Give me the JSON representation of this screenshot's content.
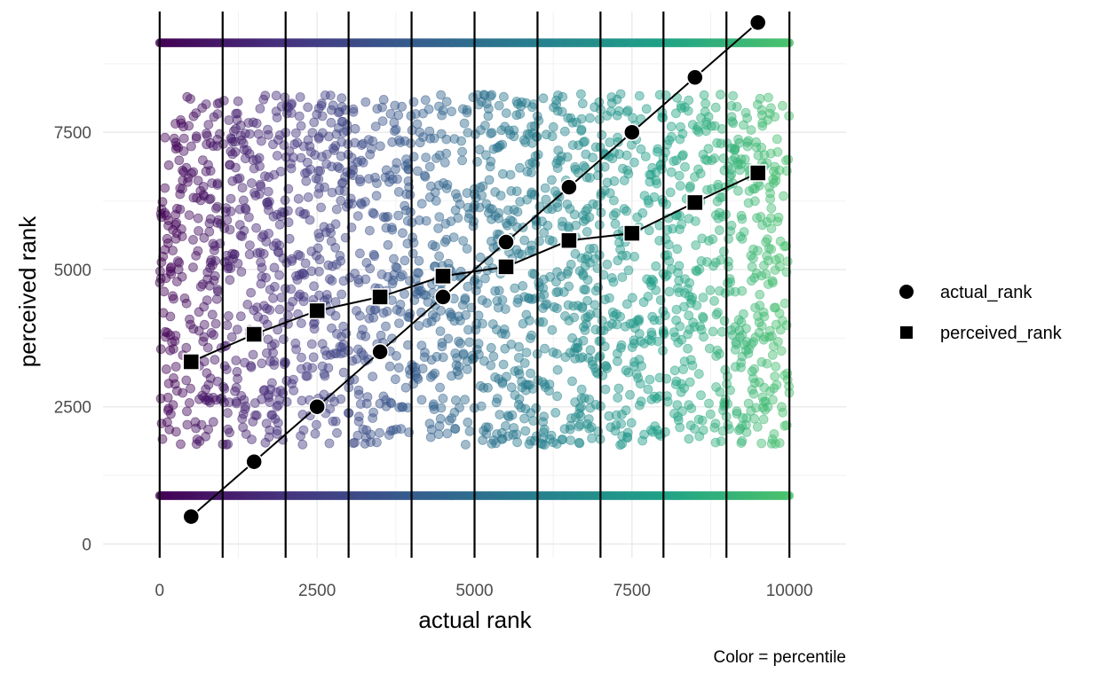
{
  "chart_data": {
    "type": "scatter",
    "xlabel": "actual rank",
    "ylabel": "perceived rank",
    "caption": "Color = percentile",
    "xlim": [
      -900,
      10900
    ],
    "ylim": [
      -250,
      9700
    ],
    "x_ticks": [
      0,
      2500,
      5000,
      7500,
      10000
    ],
    "x_tick_labels": [
      "0",
      "2500",
      "5000",
      "7500",
      "10000"
    ],
    "y_ticks": [
      0,
      2500,
      5000,
      7500
    ],
    "y_tick_labels": [
      "0",
      "2500",
      "5000",
      "7500"
    ],
    "grid": true,
    "vlines": [
      0,
      1000,
      2000,
      3000,
      4000,
      5000,
      6000,
      7000,
      8000,
      9000,
      10000
    ],
    "color_scale": "viridis",
    "color_range": [
      "#440154",
      "#46337e",
      "#365c8d",
      "#277f8e",
      "#1fa187",
      "#4ac16d"
    ],
    "jitter_cloud": {
      "x_range": [
        0,
        10000
      ],
      "y_range": [
        1800,
        8200
      ],
      "point_alpha": 0.45
    },
    "floor_band_y": 880,
    "ceiling_band_y": 9130,
    "categories": [
      "500",
      "1500",
      "2500",
      "3500",
      "4500",
      "5500",
      "6500",
      "7500",
      "8500",
      "9500"
    ],
    "series": [
      {
        "name": "actual_rank",
        "marker": "circle",
        "x": [
          500,
          1500,
          2500,
          3500,
          4500,
          5500,
          6500,
          7500,
          8500,
          9500
        ],
        "values": [
          500,
          1500,
          2500,
          3500,
          4500,
          5500,
          6500,
          7500,
          8500,
          9500
        ]
      },
      {
        "name": "perceived_rank",
        "marker": "square",
        "x": [
          500,
          1500,
          2500,
          3500,
          4500,
          5500,
          6500,
          7500,
          8500,
          9500
        ],
        "values": [
          3320,
          3820,
          4250,
          4500,
          4880,
          5050,
          5530,
          5660,
          6220,
          6760
        ]
      }
    ],
    "legend": {
      "position": "right",
      "entries": [
        "actual_rank",
        "perceived_rank"
      ]
    }
  }
}
